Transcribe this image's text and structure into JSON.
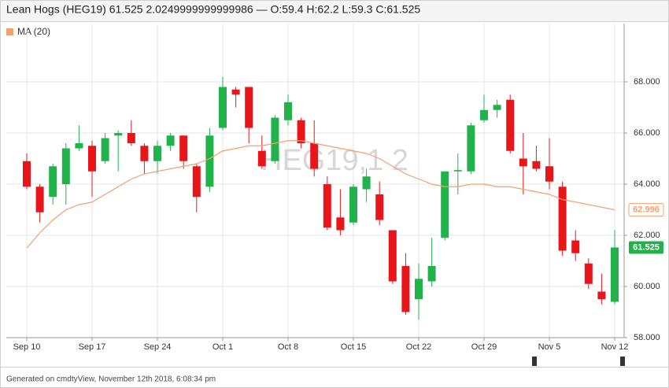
{
  "chart_data": {
    "type": "candlestick",
    "title": "Lean Hogs (HEG19) 61.525 2.0249999999999986 — O:59.4 H:62.2 L:59.3 C:61.525",
    "watermark": "HEG19,1 2",
    "categories": [
      "Sep 10",
      null,
      null,
      null,
      null,
      "Sep 17",
      null,
      null,
      null,
      null,
      "Sep 24",
      null,
      null,
      null,
      null,
      "Oct 1",
      null,
      null,
      null,
      null,
      "Oct 8",
      null,
      null,
      null,
      null,
      "Oct 15",
      null,
      null,
      null,
      null,
      "Oct 22",
      null,
      null,
      null,
      null,
      "Oct 29",
      null,
      null,
      null,
      null,
      "Nov 5",
      null,
      null,
      null,
      null,
      "Nov 12"
    ],
    "open": [
      64.9,
      63.9,
      63.5,
      64.0,
      65.4,
      65.5,
      64.9,
      65.9,
      66.0,
      65.5,
      64.9,
      65.5,
      65.9,
      64.7,
      63.9,
      66.2,
      67.7,
      67.8,
      65.3,
      64.9,
      66.5,
      66.5,
      65.6,
      64.0,
      62.7,
      62.5,
      63.8,
      63.6,
      62.2,
      60.8,
      59.5,
      60.2,
      61.9,
      64.5,
      64.5,
      66.5,
      66.9,
      67.3,
      65.0,
      64.9,
      64.7,
      63.9,
      61.8,
      60.9,
      59.8,
      59.4
    ],
    "high": [
      65.2,
      64.0,
      64.8,
      65.6,
      66.3,
      65.7,
      66.0,
      66.1,
      66.5,
      65.6,
      65.7,
      66.0,
      65.9,
      64.8,
      66.2,
      68.2,
      67.8,
      67.8,
      65.9,
      66.7,
      67.5,
      66.6,
      66.5,
      64.3,
      63.8,
      64.0,
      64.6,
      64.1,
      62.2,
      61.3,
      60.9,
      61.9,
      64.5,
      65.2,
      66.4,
      67.5,
      67.3,
      67.5,
      66.0,
      65.5,
      65.8,
      64.1,
      62.2,
      61.1,
      60.5,
      62.2
    ],
    "low": [
      63.8,
      62.5,
      63.2,
      63.2,
      65.3,
      63.5,
      64.8,
      64.5,
      65.5,
      64.4,
      64.4,
      65.3,
      64.6,
      62.9,
      63.7,
      66.1,
      67.0,
      65.6,
      64.6,
      64.8,
      66.3,
      65.4,
      64.3,
      62.2,
      62.0,
      62.4,
      63.3,
      62.4,
      60.1,
      58.9,
      58.7,
      60.0,
      61.8,
      63.6,
      64.4,
      66.4,
      66.6,
      65.2,
      63.6,
      64.5,
      63.8,
      61.2,
      61.0,
      59.9,
      59.3,
      59.3
    ],
    "close": [
      63.9,
      62.9,
      64.7,
      65.4,
      65.6,
      64.5,
      65.8,
      66.0,
      65.6,
      64.9,
      65.5,
      65.9,
      64.9,
      63.5,
      65.9,
      67.8,
      67.5,
      66.2,
      64.7,
      66.6,
      67.2,
      65.6,
      64.6,
      62.3,
      62.2,
      63.9,
      64.3,
      62.6,
      60.2,
      59.0,
      60.3,
      60.8,
      64.5,
      64.55,
      66.3,
      66.9,
      67.1,
      65.3,
      64.7,
      64.6,
      64.1,
      61.4,
      61.3,
      60.1,
      59.5,
      61.525
    ],
    "up_color": "#22b24c",
    "down_color": "#e8161b",
    "series": [
      {
        "name": "MA (20)",
        "color": "#f4a06e",
        "values": [
          61.5,
          62.1,
          62.6,
          63.0,
          63.2,
          63.3,
          63.6,
          63.9,
          64.2,
          64.4,
          64.5,
          64.6,
          64.7,
          64.8,
          65.0,
          65.3,
          65.4,
          65.5,
          65.5,
          65.6,
          65.7,
          65.7,
          65.6,
          65.5,
          65.4,
          65.3,
          65.2,
          65.0,
          64.7,
          64.4,
          64.2,
          64.0,
          63.9,
          63.9,
          64.0,
          64.0,
          63.9,
          63.9,
          63.8,
          63.7,
          63.6,
          63.4,
          63.3,
          63.2,
          63.1,
          62.996
        ]
      }
    ],
    "ylim": [
      58,
      70
    ],
    "yticks": [
      {
        "value": 58,
        "label": "58.000"
      },
      {
        "value": 60,
        "label": "60.000"
      },
      {
        "value": 62,
        "label": "62.000"
      },
      {
        "value": 64,
        "label": "64.000"
      },
      {
        "value": 66,
        "label": "66.000"
      },
      {
        "value": 68,
        "label": "68.000"
      }
    ],
    "grid": true
  },
  "footer": "Generated on cmdtyView, November 12th 2018, 6:08:34 pm"
}
